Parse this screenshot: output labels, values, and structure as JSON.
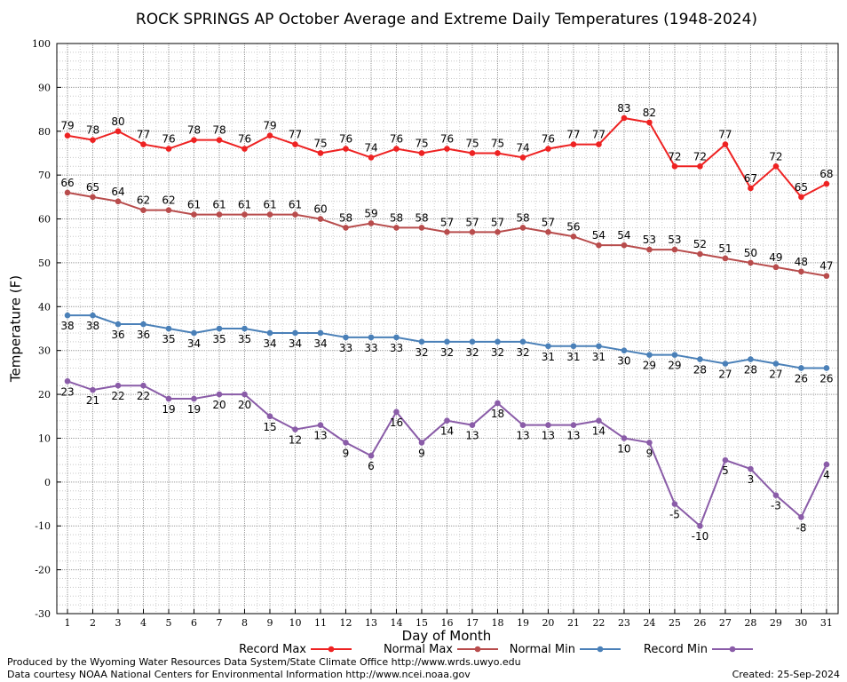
{
  "chart_data": {
    "type": "line",
    "title": "ROCK SPRINGS AP October Average and Extreme Daily Temperatures (1948-2024)",
    "xlabel": "Day of Month",
    "ylabel": "Temperature (F)",
    "ylim": [
      -30,
      100
    ],
    "xlim": [
      1,
      31
    ],
    "yticks": [
      -30,
      -20,
      -10,
      0,
      10,
      20,
      30,
      40,
      50,
      60,
      70,
      80,
      90,
      100
    ],
    "x": [
      1,
      2,
      3,
      4,
      5,
      6,
      7,
      8,
      9,
      10,
      11,
      12,
      13,
      14,
      15,
      16,
      17,
      18,
      19,
      20,
      21,
      22,
      23,
      24,
      25,
      26,
      27,
      28,
      29,
      30,
      31
    ],
    "grid": true,
    "legend_position": "bottom",
    "series": [
      {
        "name": "Record Max",
        "color": "#ee2222",
        "label_position": "above",
        "values": [
          79,
          78,
          80,
          77,
          76,
          78,
          78,
          76,
          79,
          77,
          75,
          76,
          74,
          76,
          75,
          76,
          75,
          75,
          74,
          76,
          77,
          77,
          83,
          82,
          72,
          72,
          77,
          67,
          72,
          65,
          68
        ]
      },
      {
        "name": "Normal Max",
        "color": "#b84c4c",
        "label_position": "above",
        "values": [
          66,
          65,
          64,
          62,
          62,
          61,
          61,
          61,
          61,
          61,
          60,
          58,
          59,
          58,
          58,
          57,
          57,
          57,
          58,
          57,
          56,
          54,
          54,
          53,
          53,
          52,
          51,
          50,
          49,
          48,
          47
        ]
      },
      {
        "name": "Normal Min",
        "color": "#4a80b8",
        "label_position": "below",
        "values": [
          38,
          38,
          36,
          36,
          35,
          34,
          35,
          35,
          34,
          34,
          34,
          33,
          33,
          33,
          32,
          32,
          32,
          32,
          32,
          31,
          31,
          31,
          30,
          29,
          29,
          28,
          27,
          28,
          27,
          26,
          26
        ]
      },
      {
        "name": "Record Min",
        "color": "#8a5ca8",
        "label_position": "below",
        "values": [
          23,
          21,
          22,
          22,
          19,
          19,
          20,
          20,
          15,
          12,
          13,
          9,
          6,
          16,
          9,
          14,
          13,
          18,
          13,
          13,
          13,
          14,
          10,
          9,
          -5,
          -10,
          5,
          3,
          -3,
          -8,
          4
        ]
      }
    ]
  },
  "footer": {
    "line1": "Produced by the Wyoming Water Resources Data System/State Climate Office http://www.wrds.uwyo.edu",
    "line2": "Data courtesy NOAA National Centers for Environmental Information http://www.ncei.noaa.gov",
    "created": "Created:  25-Sep-2024"
  }
}
